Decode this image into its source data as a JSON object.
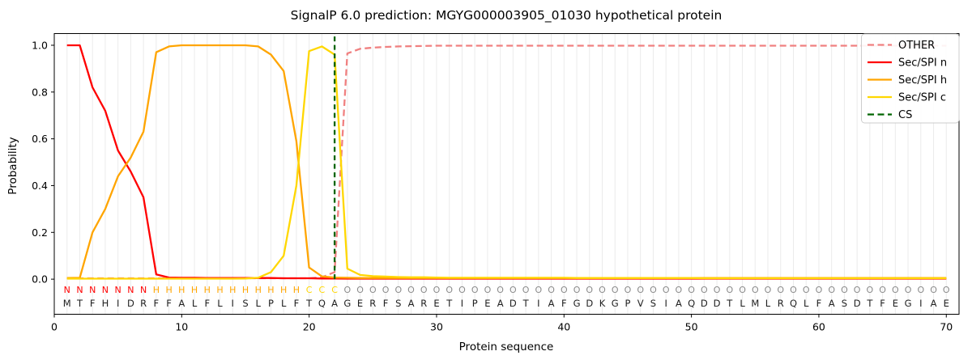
{
  "chart_data": {
    "type": "line",
    "title": "SignalP 6.0 prediction: MGYG000003905_01030 hypothetical protein",
    "xlabel": "Protein sequence",
    "ylabel": "Probability",
    "xlim": [
      0,
      71
    ],
    "ylim": [
      -0.15,
      1.05
    ],
    "xticks": [
      0,
      10,
      20,
      30,
      40,
      50,
      60,
      70
    ],
    "yticks": [
      0.0,
      0.2,
      0.4,
      0.6,
      0.8,
      1.0
    ],
    "grid": "vertical line per residue, no horizontal grid",
    "legend_position": "upper right",
    "positions": [
      1,
      2,
      3,
      4,
      5,
      6,
      7,
      8,
      9,
      10,
      11,
      12,
      13,
      14,
      15,
      16,
      17,
      18,
      19,
      20,
      21,
      22,
      23,
      24,
      25,
      26,
      27,
      28,
      29,
      30,
      31,
      32,
      33,
      34,
      35,
      36,
      37,
      38,
      39,
      40,
      41,
      42,
      43,
      44,
      45,
      46,
      47,
      48,
      49,
      50,
      51,
      52,
      53,
      54,
      55,
      56,
      57,
      58,
      59,
      60,
      61,
      62,
      63,
      64,
      65,
      66,
      67,
      68,
      69,
      70
    ],
    "sequence": "MTFHIDRFFALFLISLPLFTQAGERFSARETIPEADTIAFGDKGPVSIAQDDTLMLRQLFASDTFEGIAE",
    "region_labels": "NNNNNNNHHHHHHHHHHHHCCCOOOOOOOOOOOOOOOOOOOOOOOOOOOOOOOOOOOOOOOOOOOOOOOO",
    "series": [
      {
        "name": "OTHER",
        "color": "#f08080",
        "style": "dashed",
        "values": [
          0.004,
          0.004,
          0.004,
          0.004,
          0.004,
          0.004,
          0.004,
          0.004,
          0.004,
          0.004,
          0.004,
          0.004,
          0.004,
          0.004,
          0.004,
          0.004,
          0.004,
          0.004,
          0.004,
          0.004,
          0.008,
          0.03,
          0.965,
          0.985,
          0.99,
          0.993,
          0.995,
          0.996,
          0.997,
          0.998,
          0.998,
          0.998,
          0.998,
          0.998,
          0.998,
          0.998,
          0.998,
          0.998,
          0.998,
          0.998,
          0.998,
          0.998,
          0.998,
          0.998,
          0.998,
          0.998,
          0.998,
          0.998,
          0.998,
          0.998,
          0.998,
          0.998,
          0.998,
          0.998,
          0.998,
          0.998,
          0.998,
          0.998,
          0.998,
          0.998,
          0.998,
          0.998,
          0.998,
          0.998,
          0.998,
          0.998,
          0.998,
          0.998,
          0.998,
          0.998
        ]
      },
      {
        "name": "Sec/SPI n",
        "color": "#ff0000",
        "style": "solid",
        "values": [
          1.0,
          1.0,
          0.82,
          0.72,
          0.55,
          0.46,
          0.35,
          0.02,
          0.007,
          0.006,
          0.006,
          0.005,
          0.005,
          0.005,
          0.005,
          0.005,
          0.005,
          0.004,
          0.004,
          0.004,
          0.003,
          0.003,
          0.002,
          0.002,
          0.002,
          0.002,
          0.002,
          0.002,
          0.002,
          0.002,
          0.002,
          0.002,
          0.002,
          0.002,
          0.002,
          0.002,
          0.002,
          0.002,
          0.002,
          0.002,
          0.002,
          0.002,
          0.002,
          0.002,
          0.002,
          0.002,
          0.002,
          0.002,
          0.002,
          0.002,
          0.002,
          0.002,
          0.002,
          0.002,
          0.002,
          0.002,
          0.002,
          0.002,
          0.002,
          0.002,
          0.002,
          0.002,
          0.002,
          0.002,
          0.002,
          0.002,
          0.002,
          0.002,
          0.002,
          0.002
        ]
      },
      {
        "name": "Sec/SPI h",
        "color": "#ffa500",
        "style": "solid",
        "values": [
          0.005,
          0.006,
          0.2,
          0.3,
          0.44,
          0.52,
          0.63,
          0.97,
          0.995,
          1.0,
          1.0,
          1.0,
          1.0,
          1.0,
          1.0,
          0.995,
          0.96,
          0.89,
          0.59,
          0.05,
          0.012,
          0.007,
          0.006,
          0.005,
          0.005,
          0.005,
          0.005,
          0.005,
          0.005,
          0.005,
          0.005,
          0.005,
          0.005,
          0.005,
          0.005,
          0.005,
          0.005,
          0.005,
          0.005,
          0.005,
          0.005,
          0.005,
          0.005,
          0.005,
          0.005,
          0.005,
          0.005,
          0.005,
          0.005,
          0.005,
          0.005,
          0.005,
          0.005,
          0.005,
          0.005,
          0.005,
          0.005,
          0.005,
          0.005,
          0.005,
          0.005,
          0.005,
          0.005,
          0.005,
          0.005,
          0.005,
          0.005,
          0.005,
          0.005,
          0.005
        ]
      },
      {
        "name": "Sec/SPI c",
        "color": "#ffd700",
        "style": "solid",
        "values": [
          0.002,
          0.002,
          0.002,
          0.002,
          0.002,
          0.002,
          0.002,
          0.002,
          0.002,
          0.002,
          0.002,
          0.002,
          0.002,
          0.002,
          0.003,
          0.006,
          0.03,
          0.1,
          0.4,
          0.975,
          0.995,
          0.96,
          0.045,
          0.018,
          0.013,
          0.011,
          0.009,
          0.008,
          0.008,
          0.007,
          0.006,
          0.006,
          0.006,
          0.006,
          0.006,
          0.006,
          0.006,
          0.006,
          0.006,
          0.006,
          0.005,
          0.005,
          0.005,
          0.005,
          0.005,
          0.005,
          0.005,
          0.005,
          0.005,
          0.005,
          0.004,
          0.004,
          0.004,
          0.004,
          0.004,
          0.004,
          0.004,
          0.004,
          0.004,
          0.004,
          0.004,
          0.004,
          0.004,
          0.004,
          0.004,
          0.004,
          0.004,
          0.004,
          0.004,
          0.004
        ]
      }
    ],
    "cs_marker": {
      "name": "CS",
      "position": 22,
      "color": "#006400",
      "style": "dashed"
    },
    "letter_colors": {
      "N": "#ff0000",
      "H": "#ffa500",
      "C": "#ffd700",
      "O": "#8a8a8a",
      "sequence": "#212121"
    }
  }
}
